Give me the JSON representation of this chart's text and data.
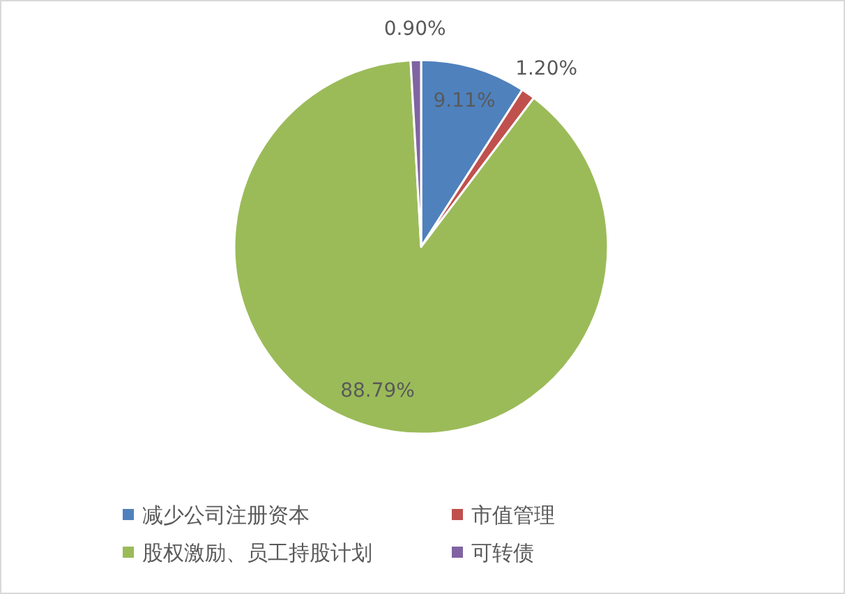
{
  "chart_data": {
    "type": "pie",
    "categories": [
      "减少公司注册资本",
      "市值管理",
      "股权激励、员工持股计划",
      "可转债"
    ],
    "values": [
      9.11,
      1.2,
      88.79,
      0.9
    ],
    "colors": [
      "#4f81bd",
      "#c0504d",
      "#9bbb59",
      "#8064a2"
    ],
    "value_labels": [
      "9.11%",
      "1.20%",
      "88.79%",
      "0.90%"
    ],
    "legend": "bottom"
  }
}
